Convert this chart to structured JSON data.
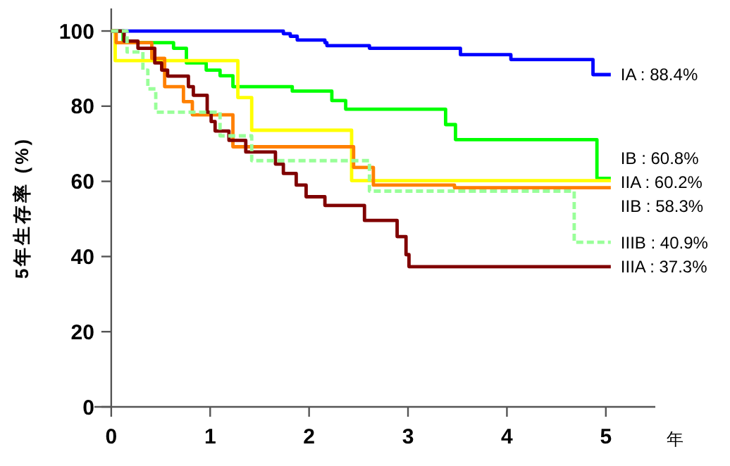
{
  "chart_data": {
    "type": "step",
    "ylabel": "5年生存率 (%)",
    "xlabel": "年",
    "xlim": [
      -0.17,
      5.5
    ],
    "ylim": [
      0,
      106
    ],
    "xticks": [
      0,
      1,
      2,
      3,
      4,
      5
    ],
    "yticks": [
      0,
      20,
      40,
      60,
      80,
      100
    ],
    "grid": false,
    "series": [
      {
        "name": "IA : 88.4%",
        "color": "#0000ff",
        "x": [
          0,
          1.74,
          1.81,
          1.88,
          2.16,
          2.18,
          2.61,
          3.53,
          4.04,
          4.87,
          5.05
        ],
        "values": [
          100,
          99.3,
          98.6,
          97.6,
          96.9,
          96.1,
          95.4,
          93.7,
          92.4,
          88.4,
          88.4
        ]
      },
      {
        "name": "IB : 60.8%",
        "color": "#00ff00",
        "x": [
          0,
          0.12,
          0.63,
          0.76,
          0.96,
          1.1,
          1.23,
          1.83,
          2.23,
          2.37,
          3.38,
          3.48,
          4.91,
          5.05
        ],
        "values": [
          100,
          96.9,
          95.4,
          91.5,
          89.6,
          88.1,
          85.2,
          84,
          81.5,
          79.2,
          75.1,
          71.1,
          60.8,
          60.8
        ]
      },
      {
        "name": "IIA : 60.2%",
        "color": "#ffff00",
        "x": [
          0,
          0.04,
          1.28,
          1.42,
          2.43,
          5.05
        ],
        "values": [
          100,
          92.1,
          82.3,
          73.6,
          60.2,
          60.2
        ]
      },
      {
        "name": "IIB : 58.3%",
        "color": "#ff8000",
        "x": [
          0,
          0.05,
          0.41,
          0.54,
          0.73,
          0.82,
          1.23,
          2.45,
          2.65,
          3.47,
          5.05
        ],
        "values": [
          100,
          96.9,
          92.7,
          85.2,
          81.2,
          77.7,
          69.2,
          63.7,
          59,
          58.3,
          58.3
        ]
      },
      {
        "name": "IIIB : 40.9%",
        "color": "#99ff99",
        "line_style": "dashed",
        "x": [
          0,
          0.16,
          0.32,
          0.37,
          0.45,
          1.1,
          1.42,
          2.61,
          4.68,
          5.05
        ],
        "values": [
          100,
          94.4,
          89.6,
          84.6,
          78.4,
          72.1,
          65.5,
          57.4,
          43.8,
          43.8
        ]
      },
      {
        "name": "IIIA : 37.3%",
        "color": "#800000",
        "x": [
          0,
          0.13,
          0.27,
          0.44,
          0.51,
          0.57,
          0.78,
          0.83,
          0.97,
          1.01,
          1.05,
          1.19,
          1.36,
          1.66,
          1.74,
          1.87,
          1.97,
          2.16,
          2.56,
          2.89,
          2.98,
          3.01,
          5.05
        ],
        "values": [
          100,
          97.3,
          95.4,
          91.5,
          89.6,
          88,
          85.2,
          82.9,
          78.4,
          75.9,
          73.4,
          70.9,
          67.8,
          64.6,
          62.1,
          59,
          55.9,
          53.6,
          49.6,
          45.3,
          40.5,
          37.3,
          37.3
        ]
      }
    ]
  }
}
